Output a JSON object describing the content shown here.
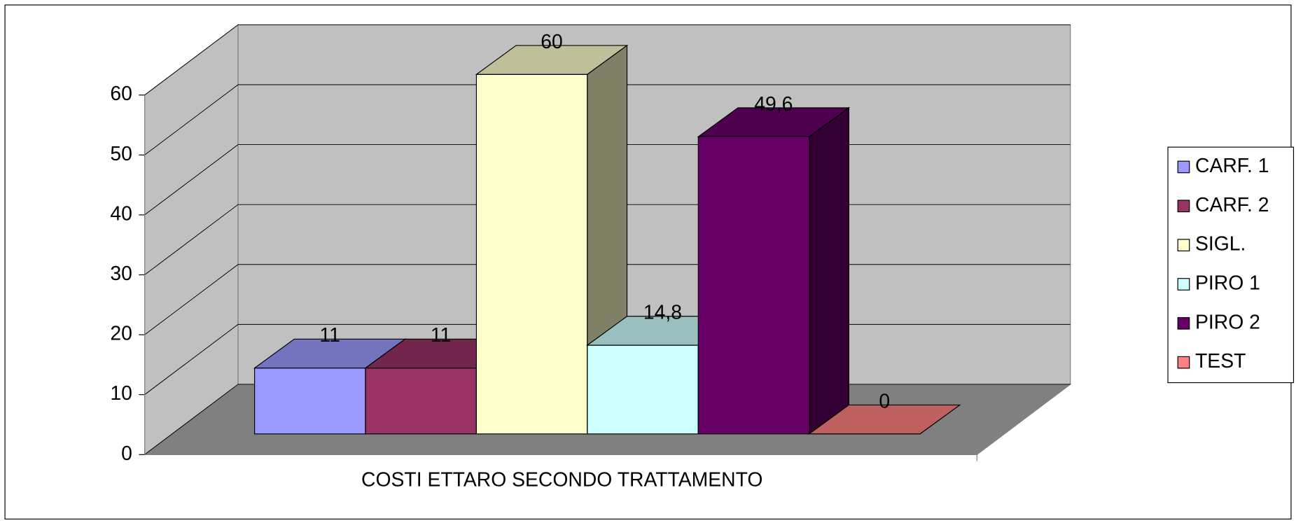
{
  "chart_data": {
    "type": "bar3d",
    "categories": [
      "COSTI ETTARO SECONDO TRATTAMENTO"
    ],
    "series": [
      {
        "name": "CARF. 1",
        "color": "#9999ff",
        "values": [
          11
        ]
      },
      {
        "name": "CARF. 2",
        "color": "#993366",
        "values": [
          11
        ]
      },
      {
        "name": "SIGL.",
        "color": "#ffffcc",
        "values": [
          60
        ]
      },
      {
        "name": "PIRO 1",
        "color": "#ccffff",
        "values": [
          14.8
        ],
        "value_labels": [
          "14,8"
        ]
      },
      {
        "name": "PIRO 2",
        "color": "#660066",
        "values": [
          49.6
        ],
        "value_labels": [
          "49,6"
        ]
      },
      {
        "name": "TEST",
        "color": "#ff8080",
        "values": [
          0
        ]
      }
    ],
    "ylim": [
      0,
      60
    ],
    "yticks": [
      0,
      10,
      20,
      30,
      40,
      50,
      60
    ],
    "grid": true,
    "legend": "right"
  }
}
